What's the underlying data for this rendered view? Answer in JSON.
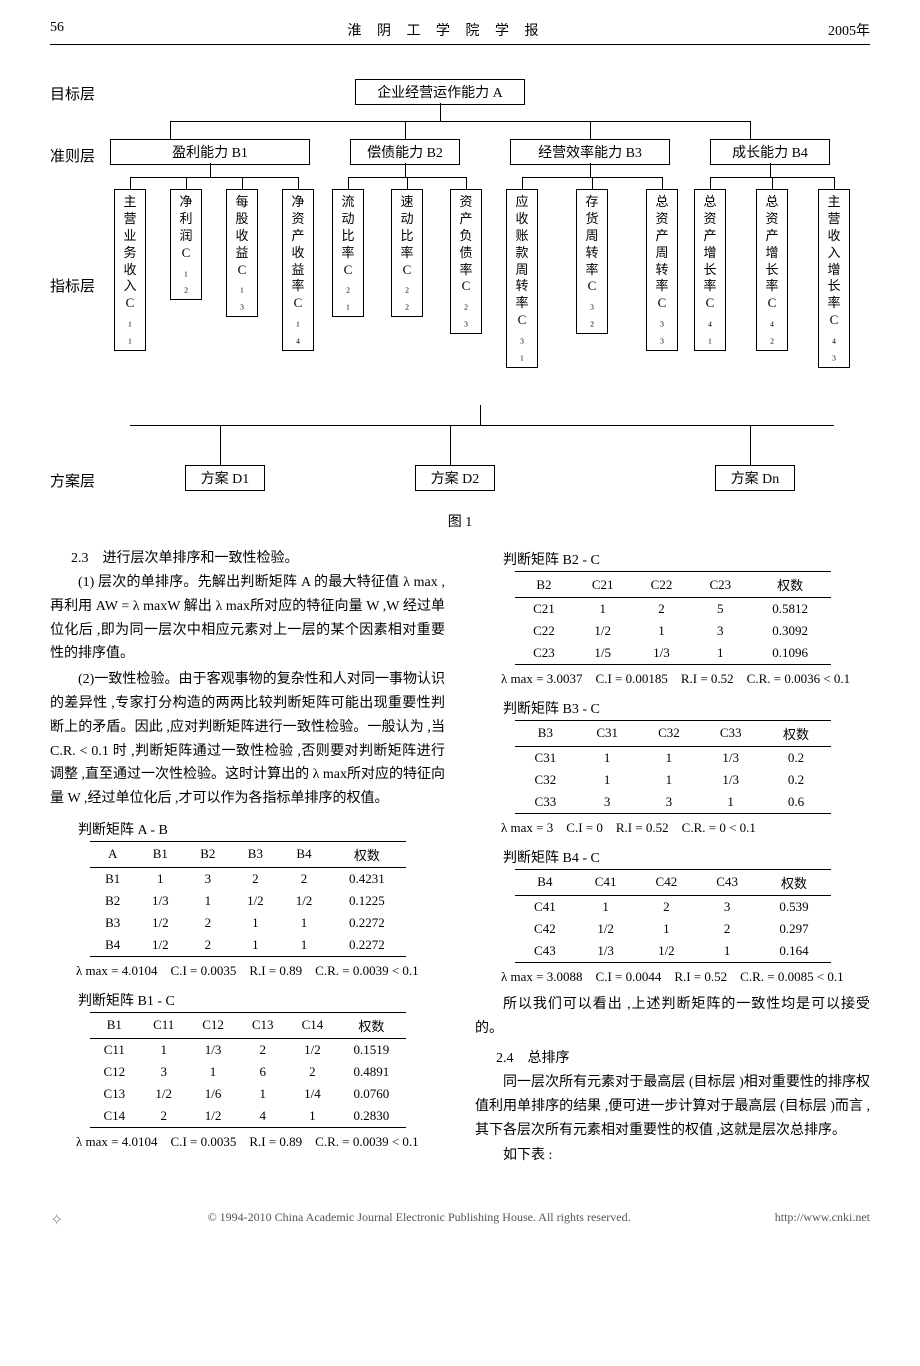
{
  "header": {
    "page": "56",
    "journal": "淮 阴 工 学 院 学 报",
    "year": "2005年"
  },
  "diagram": {
    "layers": {
      "target": "目标层",
      "criteria": "准则层",
      "indicator": "指标层",
      "plan": "方案层"
    },
    "root": "企业经营运作能力 A",
    "criteria": [
      "盈利能力 B1",
      "偿债能力 B2",
      "经营效率能力 B3",
      "成长能力 B4"
    ],
    "indicators": [
      "主营业务收入C₁₁",
      "净利润C₁₂",
      "每股收益C₁₃",
      "净资产收益率C₁₄",
      "流动比率C₂₁",
      "速动比率C₂₂",
      "资产负债率C₂₃",
      "应收账款周转率C₃₁",
      "存货周转率C₃₂",
      "总资产周转率C₃₃",
      "总资产增长率C₄₁",
      "总资产增长率C₄₂",
      "主营收入增长率C₄₃"
    ],
    "plans": [
      "方案 D1",
      "方案 D2",
      "方案 Dn"
    ],
    "caption": "图 1"
  },
  "section23": {
    "title": "2.3　进行层次单排序和一致性检验。",
    "p1": "(1) 层次的单排序。先解出判断矩阵 A 的最大特征值 λ max ,再利用 AW = λ maxW 解出 λ max所对应的特征向量 W ,W 经过单位化后 ,即为同一层次中相应元素对上一层的某个因素相对重要性的排序值。",
    "p2": "(2)一致性检验。由于客观事物的复杂性和人对同一事物认识的差异性 ,专家打分构造的两两比较判断矩阵可能出现重要性判断上的矛盾。因此 ,应对判断矩阵进行一致性检验。一般认为 ,当 C.R. < 0.1 时 ,判断矩阵通过一致性检验 ,否则要对判断矩阵进行调整 ,直至通过一次性检验。这时计算出的 λ max所对应的特征向量 W ,经过单位化后 ,才可以作为各指标单排序的权值。"
  },
  "tables": {
    "AB": {
      "title": "判断矩阵 A - B",
      "headers": [
        "A",
        "B1",
        "B2",
        "B3",
        "B4",
        "权数"
      ],
      "rows": [
        [
          "B1",
          "1",
          "3",
          "2",
          "2",
          "0.4231"
        ],
        [
          "B2",
          "1/3",
          "1",
          "1/2",
          "1/2",
          "0.1225"
        ],
        [
          "B3",
          "1/2",
          "2",
          "1",
          "1",
          "0.2272"
        ],
        [
          "B4",
          "1/2",
          "2",
          "1",
          "1",
          "0.2272"
        ]
      ],
      "stat": "λ max = 4.0104　C.I = 0.0035　R.I = 0.89　C.R. = 0.0039 < 0.1"
    },
    "B1C": {
      "title": "判断矩阵 B1 - C",
      "headers": [
        "B1",
        "C11",
        "C12",
        "C13",
        "C14",
        "权数"
      ],
      "rows": [
        [
          "C11",
          "1",
          "1/3",
          "2",
          "1/2",
          "0.1519"
        ],
        [
          "C12",
          "3",
          "1",
          "6",
          "2",
          "0.4891"
        ],
        [
          "C13",
          "1/2",
          "1/6",
          "1",
          "1/4",
          "0.0760"
        ],
        [
          "C14",
          "2",
          "1/2",
          "4",
          "1",
          "0.2830"
        ]
      ],
      "stat": "λ max = 4.0104　C.I = 0.0035　R.I = 0.89　C.R. = 0.0039 < 0.1"
    },
    "B2C": {
      "title": "判断矩阵 B2 - C",
      "headers": [
        "B2",
        "C21",
        "C22",
        "C23",
        "权数"
      ],
      "rows": [
        [
          "C21",
          "1",
          "2",
          "5",
          "0.5812"
        ],
        [
          "C22",
          "1/2",
          "1",
          "3",
          "0.3092"
        ],
        [
          "C23",
          "1/5",
          "1/3",
          "1",
          "0.1096"
        ]
      ],
      "stat": "λ max = 3.0037　C.I = 0.00185　R.I = 0.52　C.R. = 0.0036 < 0.1"
    },
    "B3C": {
      "title": "判断矩阵 B3 - C",
      "headers": [
        "B3",
        "C31",
        "C32",
        "C33",
        "权数"
      ],
      "rows": [
        [
          "C31",
          "1",
          "1",
          "1/3",
          "0.2"
        ],
        [
          "C32",
          "1",
          "1",
          "1/3",
          "0.2"
        ],
        [
          "C33",
          "3",
          "3",
          "1",
          "0.6"
        ]
      ],
      "stat": "λ max = 3　C.I = 0　R.I = 0.52　C.R. = 0 < 0.1"
    },
    "B4C": {
      "title": "判断矩阵 B4 - C",
      "headers": [
        "B4",
        "C41",
        "C42",
        "C43",
        "权数"
      ],
      "rows": [
        [
          "C41",
          "1",
          "2",
          "3",
          "0.539"
        ],
        [
          "C42",
          "1/2",
          "1",
          "2",
          "0.297"
        ],
        [
          "C43",
          "1/3",
          "1/2",
          "1",
          "0.164"
        ]
      ],
      "stat": "λ max = 3.0088　C.I = 0.0044　R.I = 0.52　C.R. = 0.0085 < 0.1"
    }
  },
  "post_text": "所以我们可以看出 ,上述判断矩阵的一致性均是可以接受的。",
  "section24": {
    "title": "2.4　总排序",
    "p1": "同一层次所有元素对于最高层 (目标层 )相对重要性的排序权值利用单排序的结果 ,便可进一步计算对于最高层 (目标层 )而言 ,其下各层次所有元素相对重要性的权值 ,这就是层次总排序。",
    "p2": "如下表 :"
  },
  "footer": {
    "copyright": "© 1994-2010 China Academic Journal Electronic Publishing House. All rights reserved.",
    "url": "http://www.cnki.net"
  }
}
